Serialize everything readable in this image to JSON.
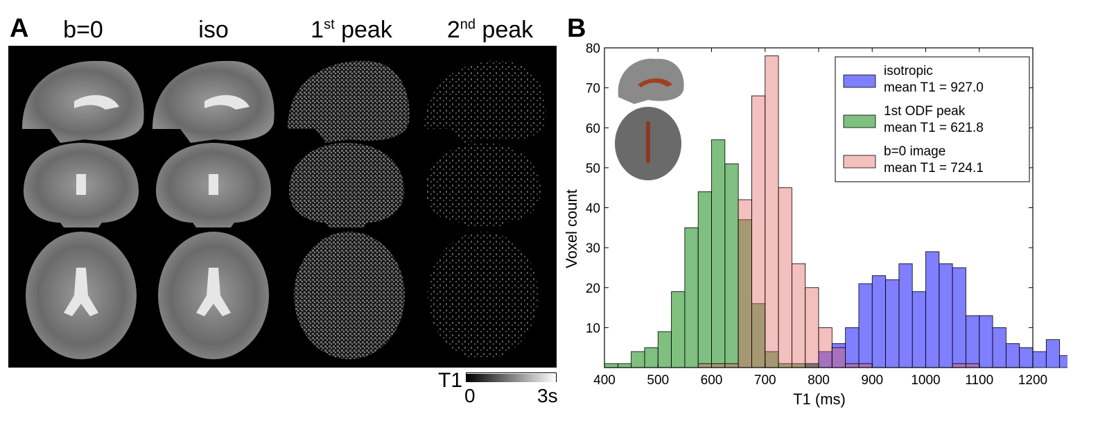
{
  "panel_a": {
    "letter": "A",
    "columns": [
      {
        "main": "b=0",
        "sup": ""
      },
      {
        "main": "iso",
        "sup": ""
      },
      {
        "main": "1",
        "sup": "st",
        "rest": " peak"
      },
      {
        "main": "2",
        "sup": "nd",
        "rest": " peak"
      }
    ],
    "colorbar": {
      "label": "T1",
      "min": "0",
      "max": "3s"
    }
  },
  "panel_b": {
    "letter": "B"
  },
  "chart_data": {
    "type": "bar",
    "subtype": "overlaid-histogram",
    "xlabel": "T1 (ms)",
    "ylabel": "Voxel count",
    "xlim": [
      400,
      1200
    ],
    "ylim": [
      0,
      80
    ],
    "bin_width": 25,
    "bin_start": 400,
    "xticks": [
      400,
      500,
      600,
      700,
      800,
      900,
      1000,
      1100,
      1200
    ],
    "yticks": [
      10,
      20,
      30,
      40,
      50,
      60,
      70,
      80
    ],
    "legend_position": "top-right",
    "grid": false,
    "series": [
      {
        "name": "isotropic",
        "mean_label": "mean T1 = 927.0",
        "color": "#0000ff",
        "values": [
          0,
          0,
          0,
          0,
          0,
          0,
          0,
          0,
          0,
          0,
          0,
          0,
          0,
          0,
          0,
          1,
          4,
          6,
          10,
          21,
          23,
          22,
          26,
          19,
          29,
          26,
          25,
          13,
          13,
          10,
          6,
          5,
          4,
          7,
          3,
          4
        ]
      },
      {
        "name": "1st ODF peak",
        "mean_label": "mean T1 = 621.8",
        "color": "#008000",
        "values": [
          1,
          1,
          4,
          5,
          9,
          19,
          35,
          44,
          57,
          51,
          37,
          16,
          4,
          1,
          1,
          1,
          0,
          0,
          0,
          0,
          0,
          0,
          0,
          0,
          0,
          0,
          0,
          0,
          0,
          0,
          0,
          0,
          0,
          0,
          0,
          0
        ]
      },
      {
        "name": "b=0 image",
        "mean_label": "mean T1 = 724.1",
        "color": "#e06060",
        "values": [
          0,
          0,
          0,
          0,
          0,
          0,
          0,
          1,
          1,
          1,
          42,
          68,
          78,
          45,
          26,
          20,
          10,
          5,
          1,
          1,
          0,
          0,
          0,
          0,
          0,
          0,
          1,
          1,
          0,
          0,
          0,
          0,
          0,
          0,
          0,
          0
        ]
      }
    ]
  }
}
